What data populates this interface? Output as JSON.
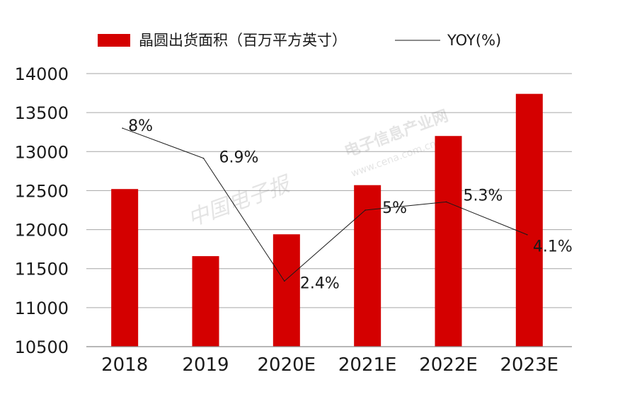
{
  "chart_data": {
    "type": "bar",
    "categories": [
      "2018",
      "2019",
      "2020E",
      "2021E",
      "2022E",
      "2023E"
    ],
    "series": [
      {
        "name": "晶圆出货面积（百万平方英寸）",
        "type": "bar",
        "axis": "left",
        "values": [
          12520,
          11660,
          11940,
          12570,
          13200,
          13740
        ],
        "color": "#d40000"
      },
      {
        "name": "YOY(%)",
        "type": "line",
        "axis": "right",
        "values": [
          8.0,
          6.9,
          2.4,
          5.0,
          5.3,
          4.1
        ],
        "labels": [
          "8%",
          "6.9%",
          "2.4%",
          "5%",
          "5.3%",
          "4.1%"
        ],
        "color": "#1a1a1a"
      }
    ],
    "yticks": [
      10500,
      11000,
      11500,
      12000,
      12500,
      13000,
      13500,
      14000
    ],
    "ylim": [
      10500,
      14000
    ],
    "y2lim": [
      0,
      10
    ],
    "grid": true,
    "legend": "top"
  },
  "watermark": {
    "site": "电子信息产业网",
    "url": "www.cena.com.cn",
    "newspaper": "中国电子报"
  }
}
